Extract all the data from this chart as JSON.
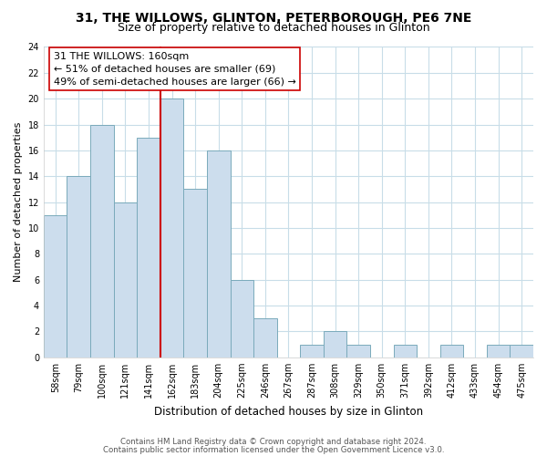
{
  "title1": "31, THE WILLOWS, GLINTON, PETERBOROUGH, PE6 7NE",
  "title2": "Size of property relative to detached houses in Glinton",
  "xlabel": "Distribution of detached houses by size in Glinton",
  "ylabel": "Number of detached properties",
  "bin_labels": [
    "58sqm",
    "79sqm",
    "100sqm",
    "121sqm",
    "141sqm",
    "162sqm",
    "183sqm",
    "204sqm",
    "225sqm",
    "246sqm",
    "267sqm",
    "287sqm",
    "308sqm",
    "329sqm",
    "350sqm",
    "371sqm",
    "392sqm",
    "412sqm",
    "433sqm",
    "454sqm",
    "475sqm"
  ],
  "counts": [
    11,
    14,
    18,
    12,
    17,
    20,
    13,
    16,
    6,
    3,
    0,
    1,
    2,
    1,
    0,
    1,
    0,
    1,
    0,
    1,
    1
  ],
  "ylim": [
    0,
    24
  ],
  "yticks": [
    0,
    2,
    4,
    6,
    8,
    10,
    12,
    14,
    16,
    18,
    20,
    22,
    24
  ],
  "bar_color": "#ccdded",
  "bar_edge_color": "#7aaabb",
  "marker_line_x_label": "162sqm",
  "marker_line_color": "#cc0000",
  "annotation_text": "31 THE WILLOWS: 160sqm\n← 51% of detached houses are smaller (69)\n49% of semi-detached houses are larger (66) →",
  "annotation_box_edge": "#cc0000",
  "footer1": "Contains HM Land Registry data © Crown copyright and database right 2024.",
  "footer2": "Contains public sector information licensed under the Open Government Licence v3.0.",
  "background_color": "#ffffff",
  "grid_color": "#c8dde8"
}
